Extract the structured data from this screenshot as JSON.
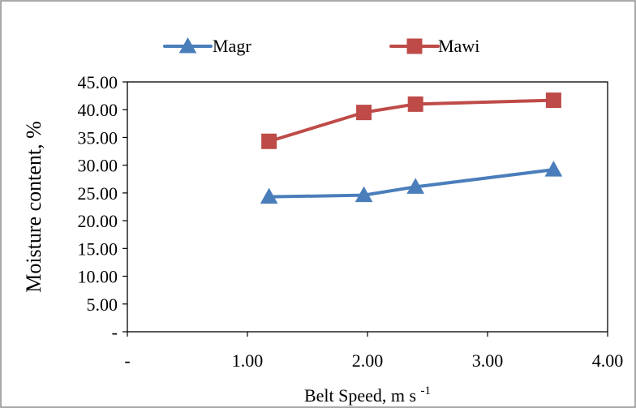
{
  "chart_data": {
    "type": "line",
    "xlabel_main": "Belt Speed, m s",
    "xlabel_sup": "-1",
    "ylabel": "Moisture content, %",
    "xlim": [
      0,
      4
    ],
    "ylim": [
      0,
      45
    ],
    "x_ticks": [
      {
        "value": 0,
        "label": "-"
      },
      {
        "value": 1,
        "label": "1.00"
      },
      {
        "value": 2,
        "label": "2.00"
      },
      {
        "value": 3,
        "label": "3.00"
      },
      {
        "value": 4,
        "label": "4.00"
      }
    ],
    "y_ticks": [
      {
        "value": 0,
        "label": "-"
      },
      {
        "value": 5,
        "label": "5.00"
      },
      {
        "value": 10,
        "label": "10.00"
      },
      {
        "value": 15,
        "label": "15.00"
      },
      {
        "value": 20,
        "label": "20.00"
      },
      {
        "value": 25,
        "label": "25.00"
      },
      {
        "value": 30,
        "label": "30.00"
      },
      {
        "value": 35,
        "label": "35.00"
      },
      {
        "value": 40,
        "label": "40.00"
      },
      {
        "value": 45,
        "label": "45.00"
      }
    ],
    "grid": false,
    "legend_position": "top",
    "series": [
      {
        "name": "Magr",
        "color": "#4a7ebb",
        "marker": "triangle",
        "points": [
          {
            "x": 1.18,
            "y": 24.3
          },
          {
            "x": 1.97,
            "y": 24.6
          },
          {
            "x": 2.4,
            "y": 26.1
          },
          {
            "x": 3.55,
            "y": 29.2
          }
        ]
      },
      {
        "name": "Mawi",
        "color": "#be4b48",
        "marker": "square",
        "points": [
          {
            "x": 1.18,
            "y": 34.3
          },
          {
            "x": 1.97,
            "y": 39.5
          },
          {
            "x": 2.4,
            "y": 41.0
          },
          {
            "x": 3.55,
            "y": 41.7
          }
        ]
      }
    ]
  }
}
